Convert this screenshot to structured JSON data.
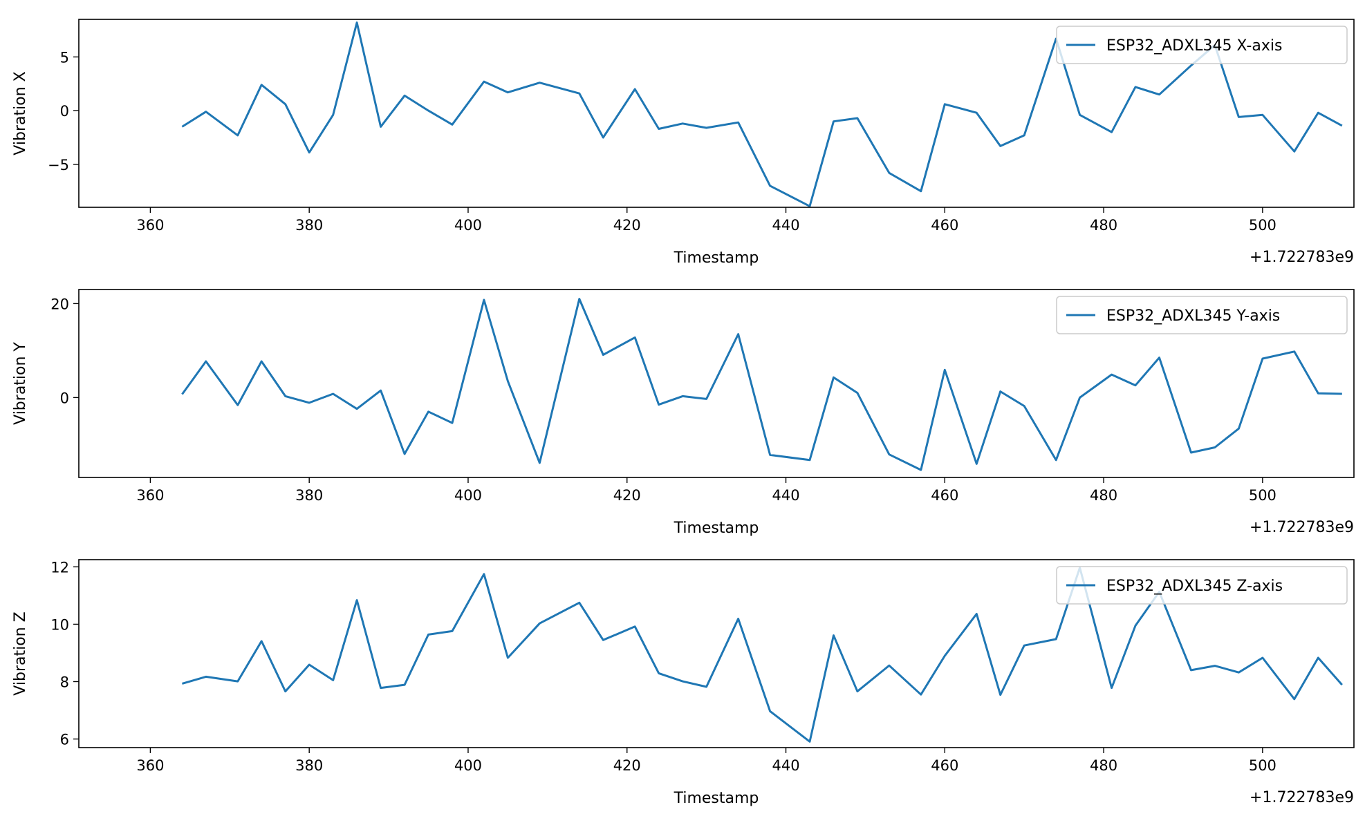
{
  "chart_data": [
    {
      "type": "line",
      "xlabel": "Timestamp",
      "ylabel": "Vibration X",
      "x_offset_label": "+1.722783e9",
      "xlim": [
        351,
        511.5
      ],
      "ylim": [
        -9.0,
        8.5
      ],
      "xticks": [
        360,
        380,
        400,
        420,
        440,
        460,
        480,
        500
      ],
      "yticks": [
        -5,
        0,
        5
      ],
      "ytick_labels": [
        "−5",
        "0",
        "5"
      ],
      "legend_position": "upper-right",
      "series": [
        {
          "name": "ESP32_ADXL345 X-axis",
          "color": "#1f77b4",
          "x": [
            364,
            367,
            371,
            374,
            377,
            380,
            383,
            386,
            389,
            392,
            395,
            398,
            402,
            405,
            409,
            414,
            417,
            421,
            424,
            427,
            430,
            434,
            438,
            443,
            446,
            449,
            453,
            457,
            460,
            464,
            467,
            470,
            474,
            477,
            481,
            484,
            487,
            491,
            494,
            497,
            500,
            504,
            507,
            510
          ],
          "y": [
            -1.5,
            -0.1,
            -2.3,
            2.4,
            0.6,
            -3.9,
            -0.4,
            8.2,
            -1.5,
            1.4,
            0.0,
            -1.3,
            2.7,
            1.7,
            2.6,
            1.6,
            -2.5,
            2.0,
            -1.7,
            -1.2,
            -1.6,
            -1.1,
            -7.0,
            -8.9,
            -1.0,
            -0.7,
            -5.8,
            -7.5,
            0.6,
            -0.2,
            -3.3,
            -2.3,
            6.7,
            -0.4,
            -2.0,
            2.2,
            1.5,
            4.2,
            6.1,
            -0.6,
            -0.4,
            -3.8,
            -0.2,
            -1.4
          ]
        }
      ]
    },
    {
      "type": "line",
      "xlabel": "Timestamp",
      "ylabel": "Vibration Y",
      "x_offset_label": "+1.722783e9",
      "xlim": [
        351,
        511.5
      ],
      "ylim": [
        -17.0,
        23.0
      ],
      "xticks": [
        360,
        380,
        400,
        420,
        440,
        460,
        480,
        500
      ],
      "yticks": [
        0,
        20
      ],
      "ytick_labels": [
        "0",
        "20"
      ],
      "legend_position": "upper-right",
      "series": [
        {
          "name": "ESP32_ADXL345 Y-axis",
          "color": "#1f77b4",
          "x": [
            364,
            367,
            371,
            374,
            377,
            380,
            383,
            386,
            389,
            392,
            395,
            398,
            402,
            405,
            409,
            414,
            417,
            421,
            424,
            427,
            430,
            434,
            438,
            443,
            446,
            449,
            453,
            457,
            460,
            464,
            467,
            470,
            474,
            477,
            481,
            484,
            487,
            491,
            494,
            497,
            500,
            504,
            507,
            510
          ],
          "y": [
            0.7,
            7.7,
            -1.6,
            7.7,
            0.3,
            -1.1,
            0.8,
            -2.4,
            1.5,
            -12.0,
            -3.0,
            -5.4,
            20.8,
            3.5,
            -13.9,
            21.0,
            9.1,
            12.8,
            -1.5,
            0.3,
            -0.3,
            13.5,
            -12.2,
            -13.3,
            4.3,
            1.0,
            -12.1,
            -15.4,
            5.9,
            -14.1,
            1.3,
            -1.8,
            -13.3,
            0.0,
            4.9,
            2.6,
            8.5,
            -11.7,
            -10.6,
            -6.6,
            8.3,
            9.8,
            0.9,
            0.8
          ]
        }
      ]
    },
    {
      "type": "line",
      "xlabel": "Timestamp",
      "ylabel": "Vibration Z",
      "x_offset_label": "+1.722783e9",
      "xlim": [
        351,
        511.5
      ],
      "ylim": [
        5.7,
        12.25
      ],
      "xticks": [
        360,
        380,
        400,
        420,
        440,
        460,
        480,
        500
      ],
      "yticks": [
        6,
        8,
        10,
        12
      ],
      "ytick_labels": [
        "6",
        "8",
        "10",
        "12"
      ],
      "legend_position": "upper-right",
      "series": [
        {
          "name": "ESP32_ADXL345 Z-axis",
          "color": "#1f77b4",
          "x": [
            364,
            367,
            371,
            374,
            377,
            380,
            383,
            386,
            389,
            392,
            395,
            398,
            402,
            405,
            409,
            414,
            417,
            421,
            424,
            427,
            430,
            434,
            438,
            443,
            446,
            449,
            453,
            457,
            460,
            464,
            467,
            470,
            474,
            477,
            481,
            484,
            487,
            491,
            494,
            497,
            500,
            504,
            507,
            510
          ],
          "y": [
            7.93,
            8.17,
            8.01,
            9.41,
            7.66,
            8.59,
            8.05,
            10.84,
            7.78,
            7.89,
            9.64,
            9.76,
            11.75,
            8.83,
            10.03,
            10.75,
            9.45,
            9.92,
            8.29,
            8.01,
            7.82,
            10.19,
            6.97,
            5.91,
            9.61,
            7.66,
            8.56,
            7.55,
            8.9,
            10.36,
            7.54,
            9.26,
            9.48,
            11.97,
            7.78,
            9.95,
            11.13,
            8.4,
            8.55,
            8.32,
            8.83,
            7.39,
            8.83,
            7.89
          ]
        }
      ]
    }
  ]
}
